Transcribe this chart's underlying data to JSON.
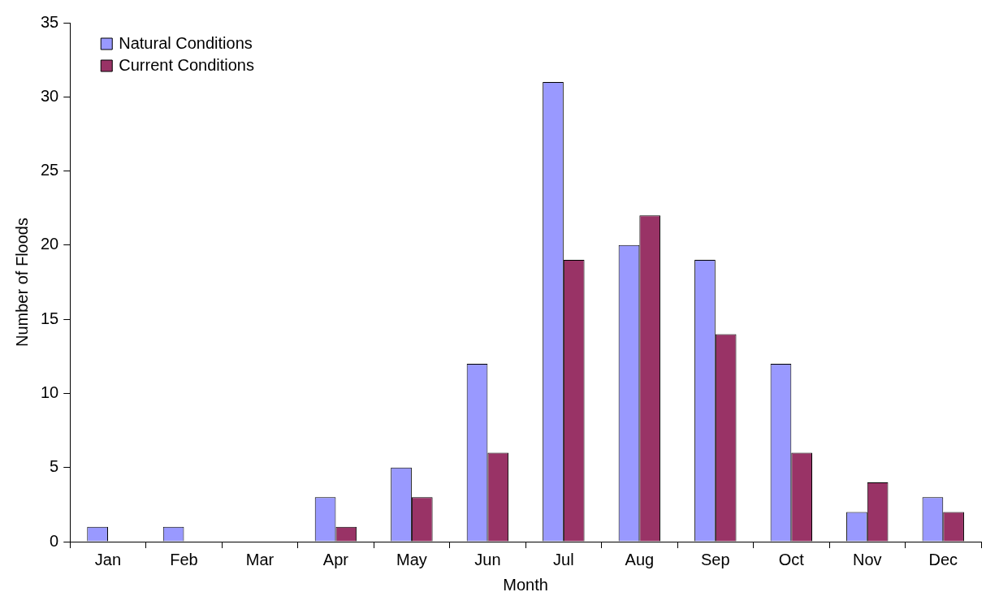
{
  "chart_data": {
    "type": "bar",
    "xlabel": "Month",
    "ylabel": "Number of Floods",
    "categories": [
      "Jan",
      "Feb",
      "Mar",
      "Apr",
      "May",
      "Jun",
      "Jul",
      "Aug",
      "Sep",
      "Oct",
      "Nov",
      "Dec"
    ],
    "series": [
      {
        "name": "Natural Conditions",
        "color": "#9999ff",
        "values": [
          1,
          1,
          0,
          3,
          5,
          12,
          31,
          20,
          19,
          12,
          2,
          3
        ]
      },
      {
        "name": "Current Conditions",
        "color": "#993366",
        "values": [
          0,
          0,
          0,
          1,
          3,
          6,
          19,
          22,
          14,
          6,
          4,
          2
        ]
      }
    ],
    "ylim": [
      0,
      35
    ],
    "yticks": [
      0,
      5,
      10,
      15,
      20,
      25,
      30,
      35
    ],
    "grid": false,
    "legend": "top left"
  }
}
